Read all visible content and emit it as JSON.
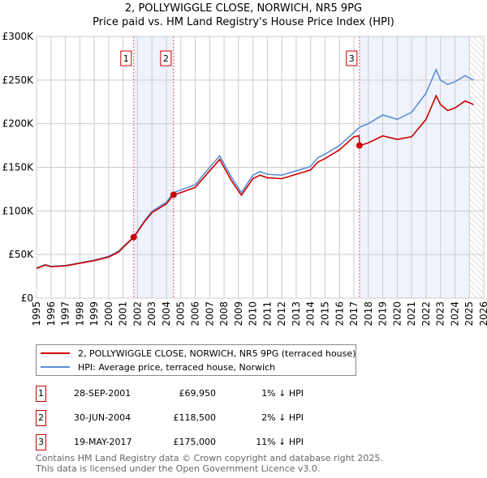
{
  "chart_data": {
    "type": "line",
    "title": "2, POLLYWIGGLE CLOSE, NORWICH, NR5 9PG",
    "subtitle": "Price paid vs. HM Land Registry's House Price Index (HPI)",
    "xlim": [
      1995,
      2026
    ],
    "ylim": [
      0,
      300000
    ],
    "y_ticks": [
      {
        "v": 0,
        "label": "£0"
      },
      {
        "v": 50000,
        "label": "£50K"
      },
      {
        "v": 100000,
        "label": "£100K"
      },
      {
        "v": 150000,
        "label": "£150K"
      },
      {
        "v": 200000,
        "label": "£200K"
      },
      {
        "v": 250000,
        "label": "£250K"
      },
      {
        "v": 300000,
        "label": "£300K"
      }
    ],
    "x_ticks": [
      "1995",
      "1996",
      "1997",
      "1998",
      "1999",
      "2000",
      "2001",
      "2002",
      "2003",
      "2004",
      "2005",
      "2006",
      "2007",
      "2008",
      "2009",
      "2010",
      "2011",
      "2012",
      "2013",
      "2014",
      "2015",
      "2016",
      "2017",
      "2018",
      "2019",
      "2020",
      "2021",
      "2022",
      "2023",
      "2024",
      "2025",
      "2026"
    ],
    "grid": true,
    "legend_position": "bottom",
    "series": [
      {
        "name": "2, POLLYWIGGLE CLOSE, NORWICH, NR5 9PG (terraced house)",
        "color": "#cc0000",
        "x": [
          1995,
          1995.6,
          1996,
          1997,
          1998,
          1999,
          2000,
          2000.7,
          2001,
          2001.75,
          2002.5,
          2003,
          2004,
          2004.5,
          2005,
          2006,
          2007,
          2007.7,
          2008,
          2008.5,
          2009.2,
          2010,
          2010.5,
          2011,
          2012,
          2013,
          2014,
          2014.5,
          2015,
          2016,
          2017,
          2017.35,
          2017.4,
          2018,
          2019,
          2020,
          2021,
          2022,
          2022.7,
          2023,
          2023.5,
          2024,
          2024.7,
          2025.3
        ],
        "y": [
          34000,
          38000,
          36000,
          37000,
          40000,
          43000,
          47000,
          53000,
          58000,
          69950,
          88000,
          98000,
          108000,
          118500,
          121000,
          127000,
          146000,
          159000,
          150000,
          135000,
          118000,
          137000,
          141000,
          138000,
          137000,
          142000,
          147000,
          156000,
          160000,
          170000,
          185000,
          186000,
          175000,
          178000,
          186000,
          182000,
          185000,
          205000,
          232000,
          222000,
          215000,
          218000,
          226000,
          222000
        ]
      },
      {
        "name": "HPI: Average price, terraced house, Norwich",
        "color": "#5b8fd6",
        "x": [
          1995,
          1995.6,
          1996,
          1997,
          1998,
          1999,
          2000,
          2000.7,
          2001,
          2001.75,
          2002.5,
          2003,
          2004,
          2004.5,
          2005,
          2006,
          2007,
          2007.7,
          2008,
          2008.5,
          2009.2,
          2010,
          2010.5,
          2011,
          2012,
          2013,
          2014,
          2014.5,
          2015,
          2016,
          2017,
          2017.4,
          2018,
          2019,
          2020,
          2021,
          2022,
          2022.7,
          2023,
          2023.5,
          2024,
          2024.7,
          2025.3
        ],
        "y": [
          34500,
          38500,
          36500,
          37500,
          40500,
          43500,
          48000,
          54000,
          59000,
          70500,
          89000,
          99500,
          110000,
          121000,
          124000,
          130000,
          150000,
          163000,
          154000,
          139000,
          121000,
          141000,
          145000,
          142000,
          141000,
          146000,
          151000,
          161000,
          165000,
          175000,
          190000,
          196000,
          200000,
          210000,
          205000,
          213000,
          235000,
          262000,
          250000,
          245000,
          248000,
          255000,
          250000
        ]
      }
    ],
    "sales": [
      {
        "label": "1",
        "x": 2001.74,
        "y": 69950,
        "date": "28-SEP-2001",
        "price": "£69,950",
        "hpi": "1% ↓ HPI"
      },
      {
        "label": "2",
        "x": 2004.5,
        "y": 118500,
        "date": "30-JUN-2004",
        "price": "£118,500",
        "hpi": "2% ↓ HPI"
      },
      {
        "label": "3",
        "x": 2017.38,
        "y": 175000,
        "date": "19-MAY-2017",
        "price": "£175,000",
        "hpi": "11% ↓ HPI"
      }
    ],
    "shaded": [
      [
        2001.74,
        2004.5
      ],
      [
        2017.38,
        2025.0
      ]
    ],
    "forecast_hatch_from": 2025.0
  },
  "footer": [
    "Contains HM Land Registry data © Crown copyright and database right 2025.",
    "This data is licensed under the Open Government Licence v3.0."
  ]
}
